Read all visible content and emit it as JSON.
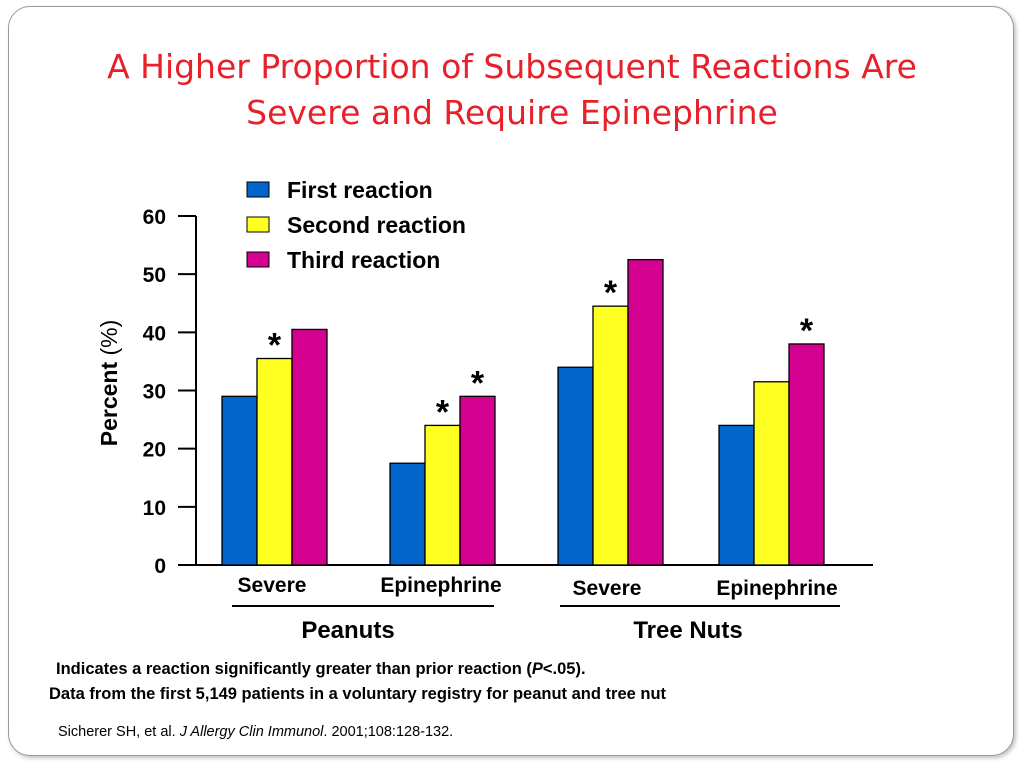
{
  "title_lines": [
    "A Higher Proportion of Subsequent Reactions Are",
    "Severe and Require Epinephrine"
  ],
  "footnote": {
    "significance_prefix": "Indicates a reaction significantly greater than prior reaction (",
    "significance_p": "P",
    "significance_suffix": "<.05).",
    "data_source": "Data from the first 5,149 patients in a voluntary registry for peanut and tree nut",
    "citation_authors": "Sicherer SH, et al. ",
    "citation_journal": "J Allergy Clin Immunol",
    "citation_rest": ". 2001;108:128-132."
  },
  "chart_data": {
    "type": "bar",
    "title": "",
    "xlabel": "",
    "ylabel": "Percent (%)",
    "ylim": [
      0,
      60
    ],
    "yticks": [
      0,
      10,
      20,
      30,
      40,
      50,
      60
    ],
    "grid": false,
    "legend_position": "top-center",
    "categories": [
      "Severe",
      "Epinephrine",
      "Severe",
      "Epinephrine"
    ],
    "groups": [
      {
        "label": "Peanuts",
        "categories": [
          0,
          1
        ]
      },
      {
        "label": "Tree Nuts",
        "categories": [
          2,
          3
        ]
      }
    ],
    "series": [
      {
        "name": "First reaction",
        "color": "#0066cc",
        "values": [
          29,
          17.5,
          34,
          24
        ]
      },
      {
        "name": "Second reaction",
        "color": "#ffff22",
        "values": [
          35.5,
          24,
          44.5,
          31.5
        ]
      },
      {
        "name": "Third reaction",
        "color": "#d4008f",
        "values": [
          40.5,
          29,
          52.5,
          38
        ]
      }
    ],
    "significance_marker": "*",
    "significance": [
      {
        "category": 0,
        "series": 1
      },
      {
        "category": 1,
        "series": 1
      },
      {
        "category": 1,
        "series": 2
      },
      {
        "category": 2,
        "series": 1
      },
      {
        "category": 3,
        "series": 2
      }
    ]
  }
}
